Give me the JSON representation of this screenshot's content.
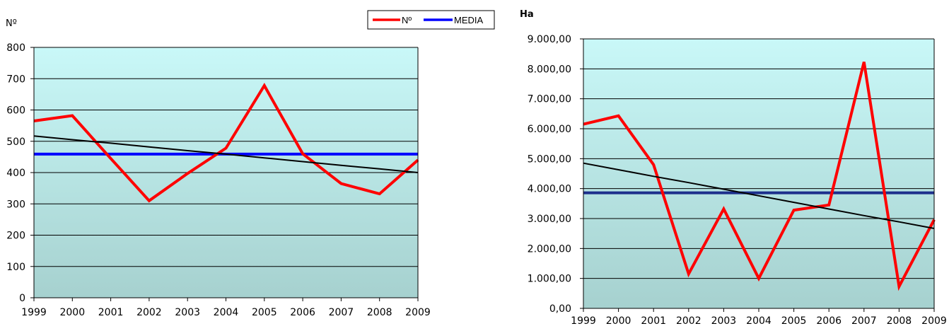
{
  "chart_data": [
    {
      "type": "line",
      "ylabel": "Nº",
      "categories": [
        "1999",
        "2000",
        "2001",
        "2002",
        "2003",
        "2004",
        "2005",
        "2006",
        "2007",
        "2008",
        "2009"
      ],
      "ylim": [
        0,
        800
      ],
      "yticks": [
        "0",
        "100",
        "200",
        "300",
        "400",
        "500",
        "600",
        "700",
        "800"
      ],
      "series": [
        {
          "name": "Nº",
          "color": "#ff0000",
          "values": [
            565,
            582,
            445,
            310,
            397,
            478,
            678,
            460,
            365,
            332,
            440
          ]
        },
        {
          "name": "MEDIA",
          "color": "#0000ff",
          "values": [
            459,
            459,
            459,
            459,
            459,
            459,
            459,
            459,
            459,
            459,
            459
          ]
        },
        {
          "color": "#000000",
          "values": [
            517,
            505,
            494,
            482,
            470,
            459,
            447,
            435,
            423,
            412,
            400
          ]
        }
      ],
      "legend": "top-right",
      "grid": true
    },
    {
      "type": "line",
      "ylabel": "Ha",
      "categories": [
        "1999",
        "2000",
        "2001",
        "2002",
        "2003",
        "2004",
        "2005",
        "2006",
        "2007",
        "2008",
        "2009"
      ],
      "ylim": [
        0,
        9000
      ],
      "yticks": [
        "0,00",
        "1.000,00",
        "2.000,00",
        "3.000,00",
        "4.000,00",
        "5.000,00",
        "6.000,00",
        "7.000,00",
        "8.000,00",
        "9.000,00"
      ],
      "series": [
        {
          "color": "#ff0000",
          "values": [
            6150,
            6430,
            4800,
            1150,
            3320,
            1000,
            3280,
            3450,
            8230,
            730,
            2960
          ]
        },
        {
          "color": "#1c2f8c",
          "values": [
            3860,
            3860,
            3860,
            3860,
            3860,
            3860,
            3860,
            3860,
            3860,
            3860,
            3860
          ]
        },
        {
          "color": "#000000",
          "values": [
            4850,
            4630,
            4410,
            4200,
            3980,
            3760,
            3540,
            3320,
            3100,
            2890,
            2670
          ]
        }
      ],
      "grid": true
    }
  ]
}
